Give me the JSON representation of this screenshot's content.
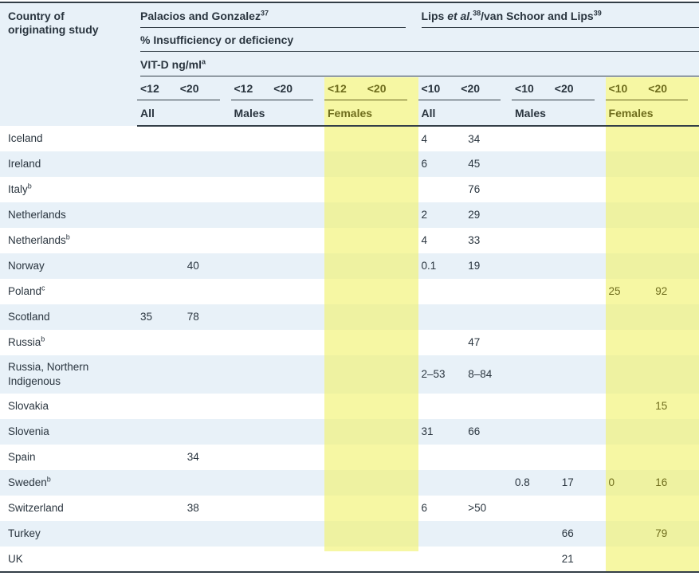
{
  "meta": {
    "colors": {
      "pale_blue": "#e8f1f8",
      "olive": "#6f6d1d",
      "dark": "#2a353f",
      "line": "#333e47"
    }
  },
  "table": {
    "corner_header": "Country of originating study",
    "group1": {
      "text": "Palacios and Gonzalez",
      "sup": "37"
    },
    "group2": {
      "p1": "Lips ",
      "italic": "et al.",
      "sup1": "38",
      "p2": "/van Schoor and Lips",
      "sup2": "39"
    },
    "subheader_pct": "% Insufficiency or deficiency",
    "subheader_vitd": {
      "text": "VIT-D ng/ml",
      "sup": "a"
    },
    "col_pairs": [
      {
        "label": "All",
        "c1": "<12",
        "c2": "<20",
        "highlight": false
      },
      {
        "label": "Males",
        "c1": "<12",
        "c2": "<20",
        "highlight": false
      },
      {
        "label": "Females",
        "c1": "<12",
        "c2": "<20",
        "highlight": true
      },
      {
        "label": "All",
        "c1": "<10",
        "c2": "<20",
        "highlight": false
      },
      {
        "label": "Males",
        "c1": "<10",
        "c2": "<20",
        "highlight": false
      },
      {
        "label": "Females",
        "c1": "<10",
        "c2": "<20",
        "highlight": true
      }
    ],
    "highlight": {
      "left_cols": [
        4,
        5
      ],
      "right_cols": [
        10,
        11
      ],
      "left_strip_stops_before_last_row": true
    },
    "rows": [
      {
        "country": "Iceland",
        "sup": "",
        "values": [
          "",
          "",
          "",
          "",
          "",
          "",
          "4",
          "34",
          "",
          "",
          "",
          ""
        ]
      },
      {
        "country": "Ireland",
        "sup": "",
        "values": [
          "",
          "",
          "",
          "",
          "",
          "",
          "6",
          "45",
          "",
          "",
          "",
          ""
        ]
      },
      {
        "country": "Italy",
        "sup": "b",
        "values": [
          "",
          "",
          "",
          "",
          "",
          "",
          "",
          "76",
          "",
          "",
          "",
          ""
        ]
      },
      {
        "country": "Netherlands",
        "sup": "",
        "values": [
          "",
          "",
          "",
          "",
          "",
          "",
          "2",
          "29",
          "",
          "",
          "",
          ""
        ]
      },
      {
        "country": "Netherlands",
        "sup": "b",
        "values": [
          "",
          "",
          "",
          "",
          "",
          "",
          "4",
          "33",
          "",
          "",
          "",
          ""
        ]
      },
      {
        "country": "Norway",
        "sup": "",
        "values": [
          "",
          "40",
          "",
          "",
          "",
          "",
          "0.1",
          "19",
          "",
          "",
          "",
          ""
        ]
      },
      {
        "country": "Poland",
        "sup": "c",
        "values": [
          "",
          "",
          "",
          "",
          "",
          "",
          "",
          "",
          "",
          "",
          "25",
          "92"
        ]
      },
      {
        "country": "Scotland",
        "sup": "",
        "values": [
          "35",
          "78",
          "",
          "",
          "",
          "",
          "",
          "",
          "",
          "",
          "",
          ""
        ]
      },
      {
        "country": "Russia",
        "sup": "b",
        "values": [
          "",
          "",
          "",
          "",
          "",
          "",
          "",
          "47",
          "",
          "",
          "",
          ""
        ]
      },
      {
        "country": "Russia, Northern Indigenous",
        "sup": "",
        "values": [
          "",
          "",
          "",
          "",
          "",
          "",
          "2–53",
          "8–84",
          "",
          "",
          "",
          ""
        ]
      },
      {
        "country": "Slovakia",
        "sup": "",
        "values": [
          "",
          "",
          "",
          "",
          "",
          "",
          "",
          "",
          "",
          "",
          "",
          "15"
        ]
      },
      {
        "country": "Slovenia",
        "sup": "",
        "values": [
          "",
          "",
          "",
          "",
          "",
          "",
          "31",
          "66",
          "",
          "",
          "",
          ""
        ]
      },
      {
        "country": "Spain",
        "sup": "",
        "values": [
          "",
          "34",
          "",
          "",
          "",
          "",
          "",
          "",
          "",
          "",
          "",
          ""
        ]
      },
      {
        "country": "Sweden",
        "sup": "b",
        "values": [
          "",
          "",
          "",
          "",
          "",
          "",
          "",
          "",
          "0.8",
          "17",
          "0",
          "16"
        ]
      },
      {
        "country": "Switzerland",
        "sup": "",
        "values": [
          "",
          "38",
          "",
          "",
          "",
          "",
          "6",
          ">50",
          "",
          "",
          "",
          ""
        ]
      },
      {
        "country": "Turkey",
        "sup": "",
        "values": [
          "",
          "",
          "",
          "",
          "",
          "",
          "",
          "",
          "",
          "66",
          "",
          "79"
        ]
      },
      {
        "country": "UK",
        "sup": "",
        "values": [
          "",
          "",
          "",
          "",
          "",
          "",
          "",
          "",
          "",
          "21",
          "",
          ""
        ]
      }
    ]
  }
}
